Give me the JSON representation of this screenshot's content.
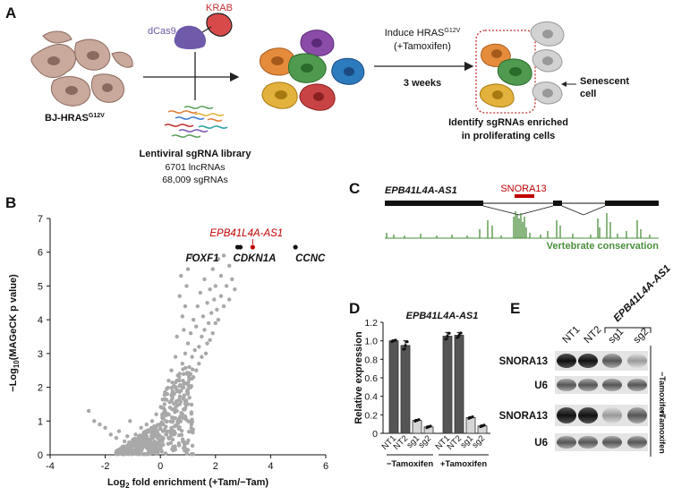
{
  "panels": {
    "a": {
      "letter": "A",
      "cas9": "dCas9",
      "krab": "KRAB",
      "cell_line_prefix": "BJ-HRAS",
      "cell_line_sup": "G12V",
      "library_title": "Lentiviral sgRNA library",
      "library_line1": "6701 lncRNAs",
      "library_line2": "68,009 sgRNAs",
      "induce_prefix": "Induce HRAS",
      "induce_sup": "G12V",
      "tamoxifen": "(+Tamoxifen)",
      "duration": "3 weeks",
      "senescent_line1": "Senescent",
      "senescent_line2": "cell",
      "identify_line1": "Identify sgRNAs enriched",
      "identify_line2": "in proliferating cells"
    },
    "b": {
      "letter": "B",
      "ylabel": "−Log10(MAGeCK p value)",
      "xlabel": "Log2 fold enrichment (+Tam/−Tam)",
      "highlight": "EPB41L4A-AS1",
      "genes": [
        "FOXF1",
        "CDKN1A",
        "CCNC"
      ]
    },
    "c": {
      "letter": "C",
      "gene": "EPB41L4A-AS1",
      "snora": "SNORA13",
      "conservation": "Vertebrate conservation"
    },
    "d": {
      "letter": "D",
      "title": "EPB41L4A-AS1",
      "ylabel": "Relative expression",
      "group1": "−Tamoxifen",
      "group2": "+Tamoxifen"
    },
    "e": {
      "letter": "E",
      "lanes": [
        "NT1",
        "NT2",
        "sg1",
        "sg2"
      ],
      "bracket_label": "EPB41L4A-AS1",
      "rows": [
        "SNORA13",
        "U6",
        "SNORA13",
        "U6"
      ],
      "cond1": "−Tamoxifen",
      "cond2": "+Tamoxifen"
    }
  },
  "chart_data": [
    {
      "type": "scatter",
      "panel": "B",
      "xlabel": "Log2 fold enrichment (+Tam/−Tam)",
      "ylabel": "−Log10(MAGeCK p value)",
      "xlim": [
        -4,
        6
      ],
      "ylim": [
        0,
        7
      ],
      "x_ticks": [
        -4,
        -2,
        0,
        2,
        4,
        6
      ],
      "y_ticks": [
        0,
        1,
        2,
        3,
        4,
        5,
        6,
        7
      ],
      "labeled_points": [
        {
          "label": "FOXF1",
          "x": 2.8,
          "y": 6.15
        },
        {
          "label": "CDKN1A",
          "x": 2.9,
          "y": 6.15
        },
        {
          "label": "EPB41L4A-AS1",
          "x": 3.35,
          "y": 6.15,
          "color": "#c00000"
        },
        {
          "label": "CCNC",
          "x": 4.9,
          "y": 6.15
        }
      ],
      "points": [
        [
          -2.6,
          1.3
        ],
        [
          -2.4,
          1.0
        ],
        [
          -2.2,
          0.9
        ],
        [
          -2.0,
          0.8
        ],
        [
          -1.8,
          0.6
        ],
        [
          -1.6,
          0.5
        ],
        [
          -1.5,
          0.7
        ],
        [
          -1.3,
          0.4
        ],
        [
          -1.2,
          0.55
        ],
        [
          -1.0,
          0.35
        ],
        [
          -0.9,
          0.6
        ],
        [
          -0.8,
          0.3
        ],
        [
          -0.7,
          0.45
        ],
        [
          -0.6,
          0.25
        ],
        [
          -0.5,
          0.5
        ],
        [
          -0.4,
          0.3
        ],
        [
          -0.3,
          0.6
        ],
        [
          -0.2,
          0.35
        ],
        [
          -0.1,
          0.5
        ],
        [
          0.0,
          0.4
        ],
        [
          0.0,
          0.8
        ],
        [
          0.1,
          0.9
        ],
        [
          0.1,
          0.3
        ],
        [
          0.2,
          1.0
        ],
        [
          0.2,
          0.6
        ],
        [
          0.3,
          1.2
        ],
        [
          0.3,
          0.5
        ],
        [
          0.35,
          1.4
        ],
        [
          0.4,
          0.8
        ],
        [
          0.4,
          1.6
        ],
        [
          0.45,
          1.1
        ],
        [
          0.5,
          1.8
        ],
        [
          0.5,
          0.7
        ],
        [
          0.55,
          2.0
        ],
        [
          0.6,
          1.3
        ],
        [
          0.6,
          2.2
        ],
        [
          0.65,
          1.0
        ],
        [
          0.7,
          2.4
        ],
        [
          0.7,
          1.5
        ],
        [
          0.75,
          1.9
        ],
        [
          0.8,
          2.7
        ],
        [
          0.8,
          1.2
        ],
        [
          0.85,
          2.1
        ],
        [
          0.9,
          3.0
        ],
        [
          0.9,
          1.6
        ],
        [
          0.95,
          2.4
        ],
        [
          1.0,
          3.3
        ],
        [
          1.0,
          1.8
        ],
        [
          1.05,
          2.6
        ],
        [
          1.1,
          3.6
        ],
        [
          1.1,
          2.0
        ],
        [
          1.15,
          2.9
        ],
        [
          1.2,
          4.0
        ],
        [
          1.2,
          2.3
        ],
        [
          1.25,
          3.1
        ],
        [
          1.3,
          3.8
        ],
        [
          1.3,
          2.5
        ],
        [
          1.35,
          4.4
        ],
        [
          1.4,
          3.2
        ],
        [
          1.4,
          2.7
        ],
        [
          1.45,
          4.8
        ],
        [
          1.5,
          3.5
        ],
        [
          1.5,
          2.9
        ],
        [
          1.55,
          4.1
        ],
        [
          1.6,
          3.7
        ],
        [
          1.6,
          5.2
        ],
        [
          1.65,
          3.0
        ],
        [
          1.7,
          4.5
        ],
        [
          1.7,
          3.3
        ],
        [
          1.75,
          3.9
        ],
        [
          1.8,
          4.9
        ],
        [
          1.8,
          3.4
        ],
        [
          1.85,
          4.2
        ],
        [
          1.9,
          5.5
        ],
        [
          1.9,
          3.6
        ],
        [
          1.95,
          4.6
        ],
        [
          2.0,
          3.9
        ],
        [
          2.0,
          5.0
        ],
        [
          2.05,
          4.3
        ],
        [
          2.1,
          5.8
        ],
        [
          2.1,
          4.0
        ],
        [
          2.2,
          4.7
        ],
        [
          2.2,
          5.3
        ],
        [
          2.3,
          4.4
        ],
        [
          2.3,
          5.9
        ],
        [
          2.4,
          5.0
        ],
        [
          2.5,
          4.6
        ],
        [
          2.5,
          5.6
        ],
        [
          2.6,
          5.2
        ],
        [
          2.7,
          4.9
        ],
        [
          0.7,
          4.7
        ],
        [
          0.8,
          4.1
        ],
        [
          0.85,
          3.7
        ],
        [
          0.6,
          3.5
        ],
        [
          0.55,
          2.9
        ],
        [
          0.9,
          4.4
        ],
        [
          0.4,
          2.5
        ],
        [
          0.3,
          2.2
        ],
        [
          0.95,
          5.0
        ],
        [
          1.0,
          5.5
        ],
        [
          -0.3,
          1.0
        ],
        [
          -0.5,
          0.9
        ],
        [
          -0.7,
          0.8
        ],
        [
          -1.1,
          1.0
        ],
        [
          0.15,
          1.5
        ],
        [
          0.25,
          1.8
        ],
        [
          -0.15,
          1.2
        ],
        [
          0.05,
          1.4
        ],
        [
          1.15,
          5.9
        ],
        [
          0.75,
          5.3
        ]
      ]
    },
    {
      "type": "bar",
      "panel": "D",
      "title": "EPB41L4A-AS1",
      "ylabel": "Relative expression",
      "categories": [
        "NT1",
        "NT2",
        "sg1",
        "sg2",
        "NT1",
        "NT2",
        "sg1",
        "sg2"
      ],
      "groups": [
        "−Tamoxifen",
        "−Tamoxifen",
        "−Tamoxifen",
        "−Tamoxifen",
        "+Tamoxifen",
        "+Tamoxifen",
        "+Tamoxifen",
        "+Tamoxifen"
      ],
      "values": [
        1.0,
        0.95,
        0.14,
        0.07,
        1.05,
        1.06,
        0.17,
        0.08
      ],
      "errors": [
        0.01,
        0.05,
        0.01,
        0.01,
        0.04,
        0.03,
        0.01,
        0.01
      ],
      "ylim": [
        0,
        1.2
      ],
      "y_ticks": [
        0,
        0.2,
        0.4,
        0.6,
        0.8,
        1.0,
        1.2
      ]
    }
  ]
}
